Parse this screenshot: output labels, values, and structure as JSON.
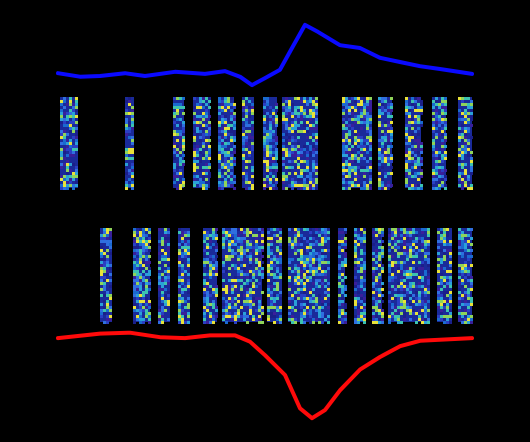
{
  "chart_data": [
    {
      "type": "line",
      "color": "#0a0aff",
      "x": [
        0,
        22,
        42,
        67,
        87,
        117,
        147,
        167,
        182,
        194,
        207,
        222,
        234,
        247,
        260,
        282,
        302,
        322,
        342,
        362,
        382,
        414
      ],
      "values": [
        24,
        19,
        20,
        24,
        20,
        26,
        23,
        27,
        19,
        7,
        17,
        29,
        60,
        93,
        83,
        64,
        60,
        46,
        40,
        34,
        30,
        23
      ],
      "xlim": [
        0,
        414
      ],
      "ylim": [
        0,
        100
      ]
    },
    {
      "type": "line",
      "color": "#ff0a0a",
      "x": [
        0,
        42,
        72,
        102,
        127,
        152,
        177,
        192,
        207,
        227,
        242,
        254,
        267,
        282,
        302,
        322,
        342,
        362,
        414
      ],
      "values": [
        91,
        96,
        97,
        92,
        91,
        94,
        94,
        87,
        72,
        50,
        13,
        2,
        11,
        33,
        56,
        70,
        82,
        88,
        91
      ],
      "xlim": [
        0,
        414
      ],
      "ylim": [
        0,
        100
      ]
    }
  ]
}
